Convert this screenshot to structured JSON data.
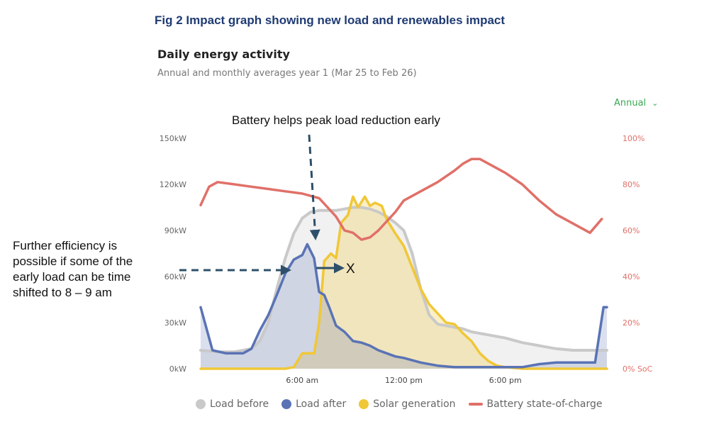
{
  "figure_title": "Fig 2 Impact graph showing new load and renewables impact",
  "card": {
    "title": "Daily energy activity",
    "subtitle": "Annual and monthly averages year 1 (Mar 25 to Feb 26)",
    "period_select": "Annual"
  },
  "annotations": {
    "top": "Battery helps peak load reduction early",
    "left": "Further efficiency is possible if some of the early load can be time shifted to 8 – 9 am",
    "marker": "X"
  },
  "colors": {
    "load_before": "#c9c9c9",
    "load_after": "#5a73b5",
    "solar": "#f0c737",
    "battery": "#e07068",
    "annotation": "#2e506a"
  },
  "chart_data": {
    "type": "area",
    "x_unit": "hour",
    "xlim": [
      0,
      24
    ],
    "x_ticks": [
      {
        "x": 6,
        "label": "6:00 am"
      },
      {
        "x": 12,
        "label": "12:00 pm"
      },
      {
        "x": 18,
        "label": "6:00 pm"
      }
    ],
    "y_left": {
      "ylim": [
        0,
        150
      ],
      "ticks": [
        {
          "v": 0,
          "label": "0kW"
        },
        {
          "v": 30,
          "label": "30kW"
        },
        {
          "v": 60,
          "label": "60kW"
        },
        {
          "v": 90,
          "label": "90kW"
        },
        {
          "v": 120,
          "label": "120kW"
        },
        {
          "v": 150,
          "label": "150kW"
        }
      ]
    },
    "y_right": {
      "ylim": [
        0,
        100
      ],
      "ticks": [
        {
          "v": 0,
          "label": "0% SoC"
        },
        {
          "v": 20,
          "label": "20%"
        },
        {
          "v": 40,
          "label": "40%"
        },
        {
          "v": 60,
          "label": "60%"
        },
        {
          "v": 80,
          "label": "80%"
        },
        {
          "v": 100,
          "label": "100%"
        }
      ]
    },
    "series": [
      {
        "name": "Load before",
        "axis": "left",
        "x": [
          0,
          1,
          2,
          3,
          3.5,
          4,
          4.5,
          5,
          5.5,
          6,
          6.5,
          7,
          7.5,
          8,
          8.5,
          9,
          9.5,
          10,
          10.5,
          11,
          11.5,
          12,
          12.5,
          13,
          13.5,
          14,
          14.5,
          15,
          15.5,
          16,
          17,
          18,
          19,
          20,
          21,
          22,
          23,
          24
        ],
        "values": [
          12,
          11,
          11,
          13,
          18,
          30,
          52,
          72,
          88,
          98,
          102,
          103,
          103,
          103,
          104,
          105,
          105,
          104,
          102,
          99,
          95,
          90,
          75,
          52,
          35,
          29,
          28,
          27,
          26,
          24,
          22,
          20,
          17,
          15,
          13,
          12,
          12,
          12
        ]
      },
      {
        "name": "Load after",
        "axis": "left",
        "x": [
          0,
          0.7,
          1.5,
          2.5,
          3,
          3.5,
          4,
          4.5,
          5,
          5.5,
          6,
          6.3,
          6.7,
          7,
          7.3,
          7.6,
          8,
          8.5,
          9,
          9.5,
          10,
          10.5,
          11,
          11.5,
          12,
          13,
          14,
          15,
          16,
          17,
          18,
          19,
          20,
          21,
          22,
          23,
          23.3,
          23.8,
          24
        ],
        "values": [
          40,
          12,
          10,
          10,
          13,
          25,
          35,
          48,
          62,
          71,
          74,
          81,
          72,
          50,
          48,
          40,
          28,
          24,
          18,
          17,
          15,
          12,
          10,
          8,
          7,
          4,
          2,
          1,
          1,
          1,
          1,
          1,
          3,
          4,
          4,
          4,
          4,
          40,
          40
        ]
      },
      {
        "name": "Solar generation",
        "axis": "left",
        "x": [
          0,
          1,
          2,
          3,
          4,
          5,
          5.5,
          6,
          6.3,
          6.7,
          7,
          7.3,
          7.7,
          8,
          8.3,
          8.7,
          9,
          9.3,
          9.7,
          10,
          10.3,
          10.7,
          11,
          11.5,
          12,
          12.5,
          13,
          13.5,
          14,
          14.5,
          15,
          15.5,
          16,
          16.5,
          17,
          17.5,
          18,
          19,
          20,
          21,
          22,
          23,
          24
        ],
        "values": [
          0,
          0,
          0,
          0,
          0,
          0,
          1,
          10,
          10,
          10,
          30,
          70,
          75,
          72,
          95,
          100,
          112,
          105,
          112,
          106,
          108,
          106,
          97,
          88,
          80,
          66,
          52,
          42,
          36,
          30,
          29,
          23,
          18,
          10,
          5,
          2,
          1,
          0,
          0,
          0,
          0,
          0,
          0
        ]
      },
      {
        "name": "Battery state-of-charge",
        "axis": "right",
        "x": [
          0,
          0.5,
          1,
          2,
          3,
          4,
          5,
          6,
          6.5,
          7,
          7.5,
          8,
          8.5,
          9,
          9.5,
          10,
          10.5,
          11,
          11.5,
          12,
          13,
          14,
          15,
          15.5,
          16,
          16.5,
          17,
          18,
          19,
          20,
          21,
          22,
          23,
          23.7
        ],
        "values": [
          71,
          79,
          81,
          80,
          79,
          78,
          77,
          76,
          75,
          74,
          70,
          66,
          60,
          59,
          56,
          57,
          60,
          64,
          68,
          73,
          77,
          81,
          86,
          89,
          91,
          91,
          89,
          85,
          80,
          73,
          67,
          63,
          59,
          65
        ]
      }
    ],
    "legend": [
      {
        "label": "Load before",
        "marker": "dot"
      },
      {
        "label": "Load after",
        "marker": "dot"
      },
      {
        "label": "Solar generation",
        "marker": "dot"
      },
      {
        "label": "Battery state-of-charge",
        "marker": "line"
      }
    ]
  }
}
